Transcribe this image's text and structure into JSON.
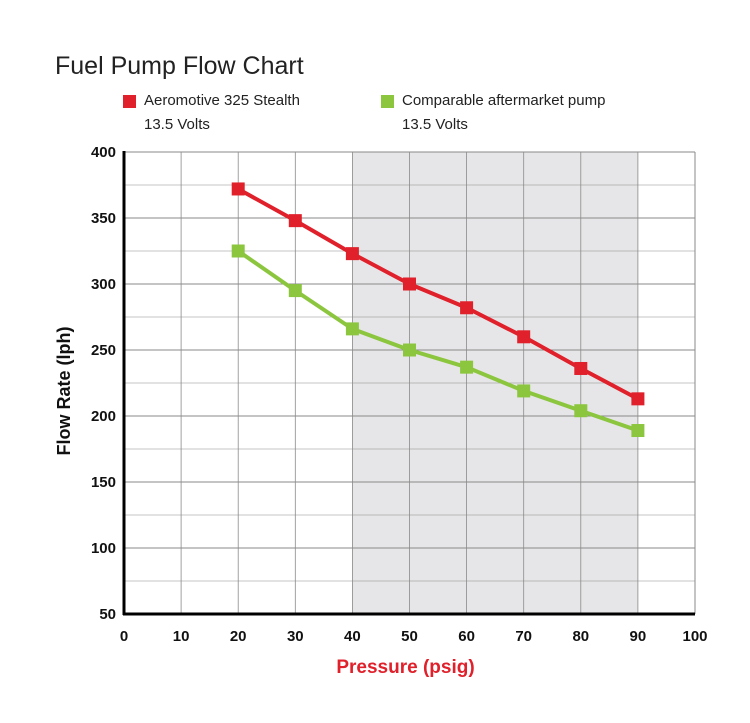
{
  "chart_data": {
    "type": "line",
    "title": "Fuel Pump Flow Chart",
    "xlabel": "Pressure (psig)",
    "ylabel": "Flow Rate (lph)",
    "xlim": [
      0,
      100
    ],
    "ylim": [
      50,
      400
    ],
    "xticks": [
      0,
      10,
      20,
      30,
      40,
      50,
      60,
      70,
      80,
      90,
      100
    ],
    "yticks": [
      50,
      100,
      150,
      200,
      250,
      300,
      350,
      400
    ],
    "grid": true,
    "shaded_x_range": [
      40,
      90
    ],
    "legend_position": "top-left",
    "x": [
      20,
      30,
      40,
      50,
      60,
      70,
      80,
      90
    ],
    "series": [
      {
        "name": "Aeromotive 325 Stealth",
        "note": "13.5 Volts",
        "color": "#e0202a",
        "values": [
          372,
          348,
          323,
          300,
          282,
          260,
          236,
          213
        ]
      },
      {
        "name": "Comparable aftermarket pump",
        "note": "13.5 Volts",
        "color": "#8cc63f",
        "values": [
          325,
          295,
          266,
          250,
          237,
          219,
          204,
          189
        ]
      }
    ],
    "colors": {
      "axis": "#000000",
      "grid": "#8a8a8a",
      "shade": "#e6e6e8",
      "xlabel": "#e0202a",
      "ylabel": "#111111"
    }
  }
}
